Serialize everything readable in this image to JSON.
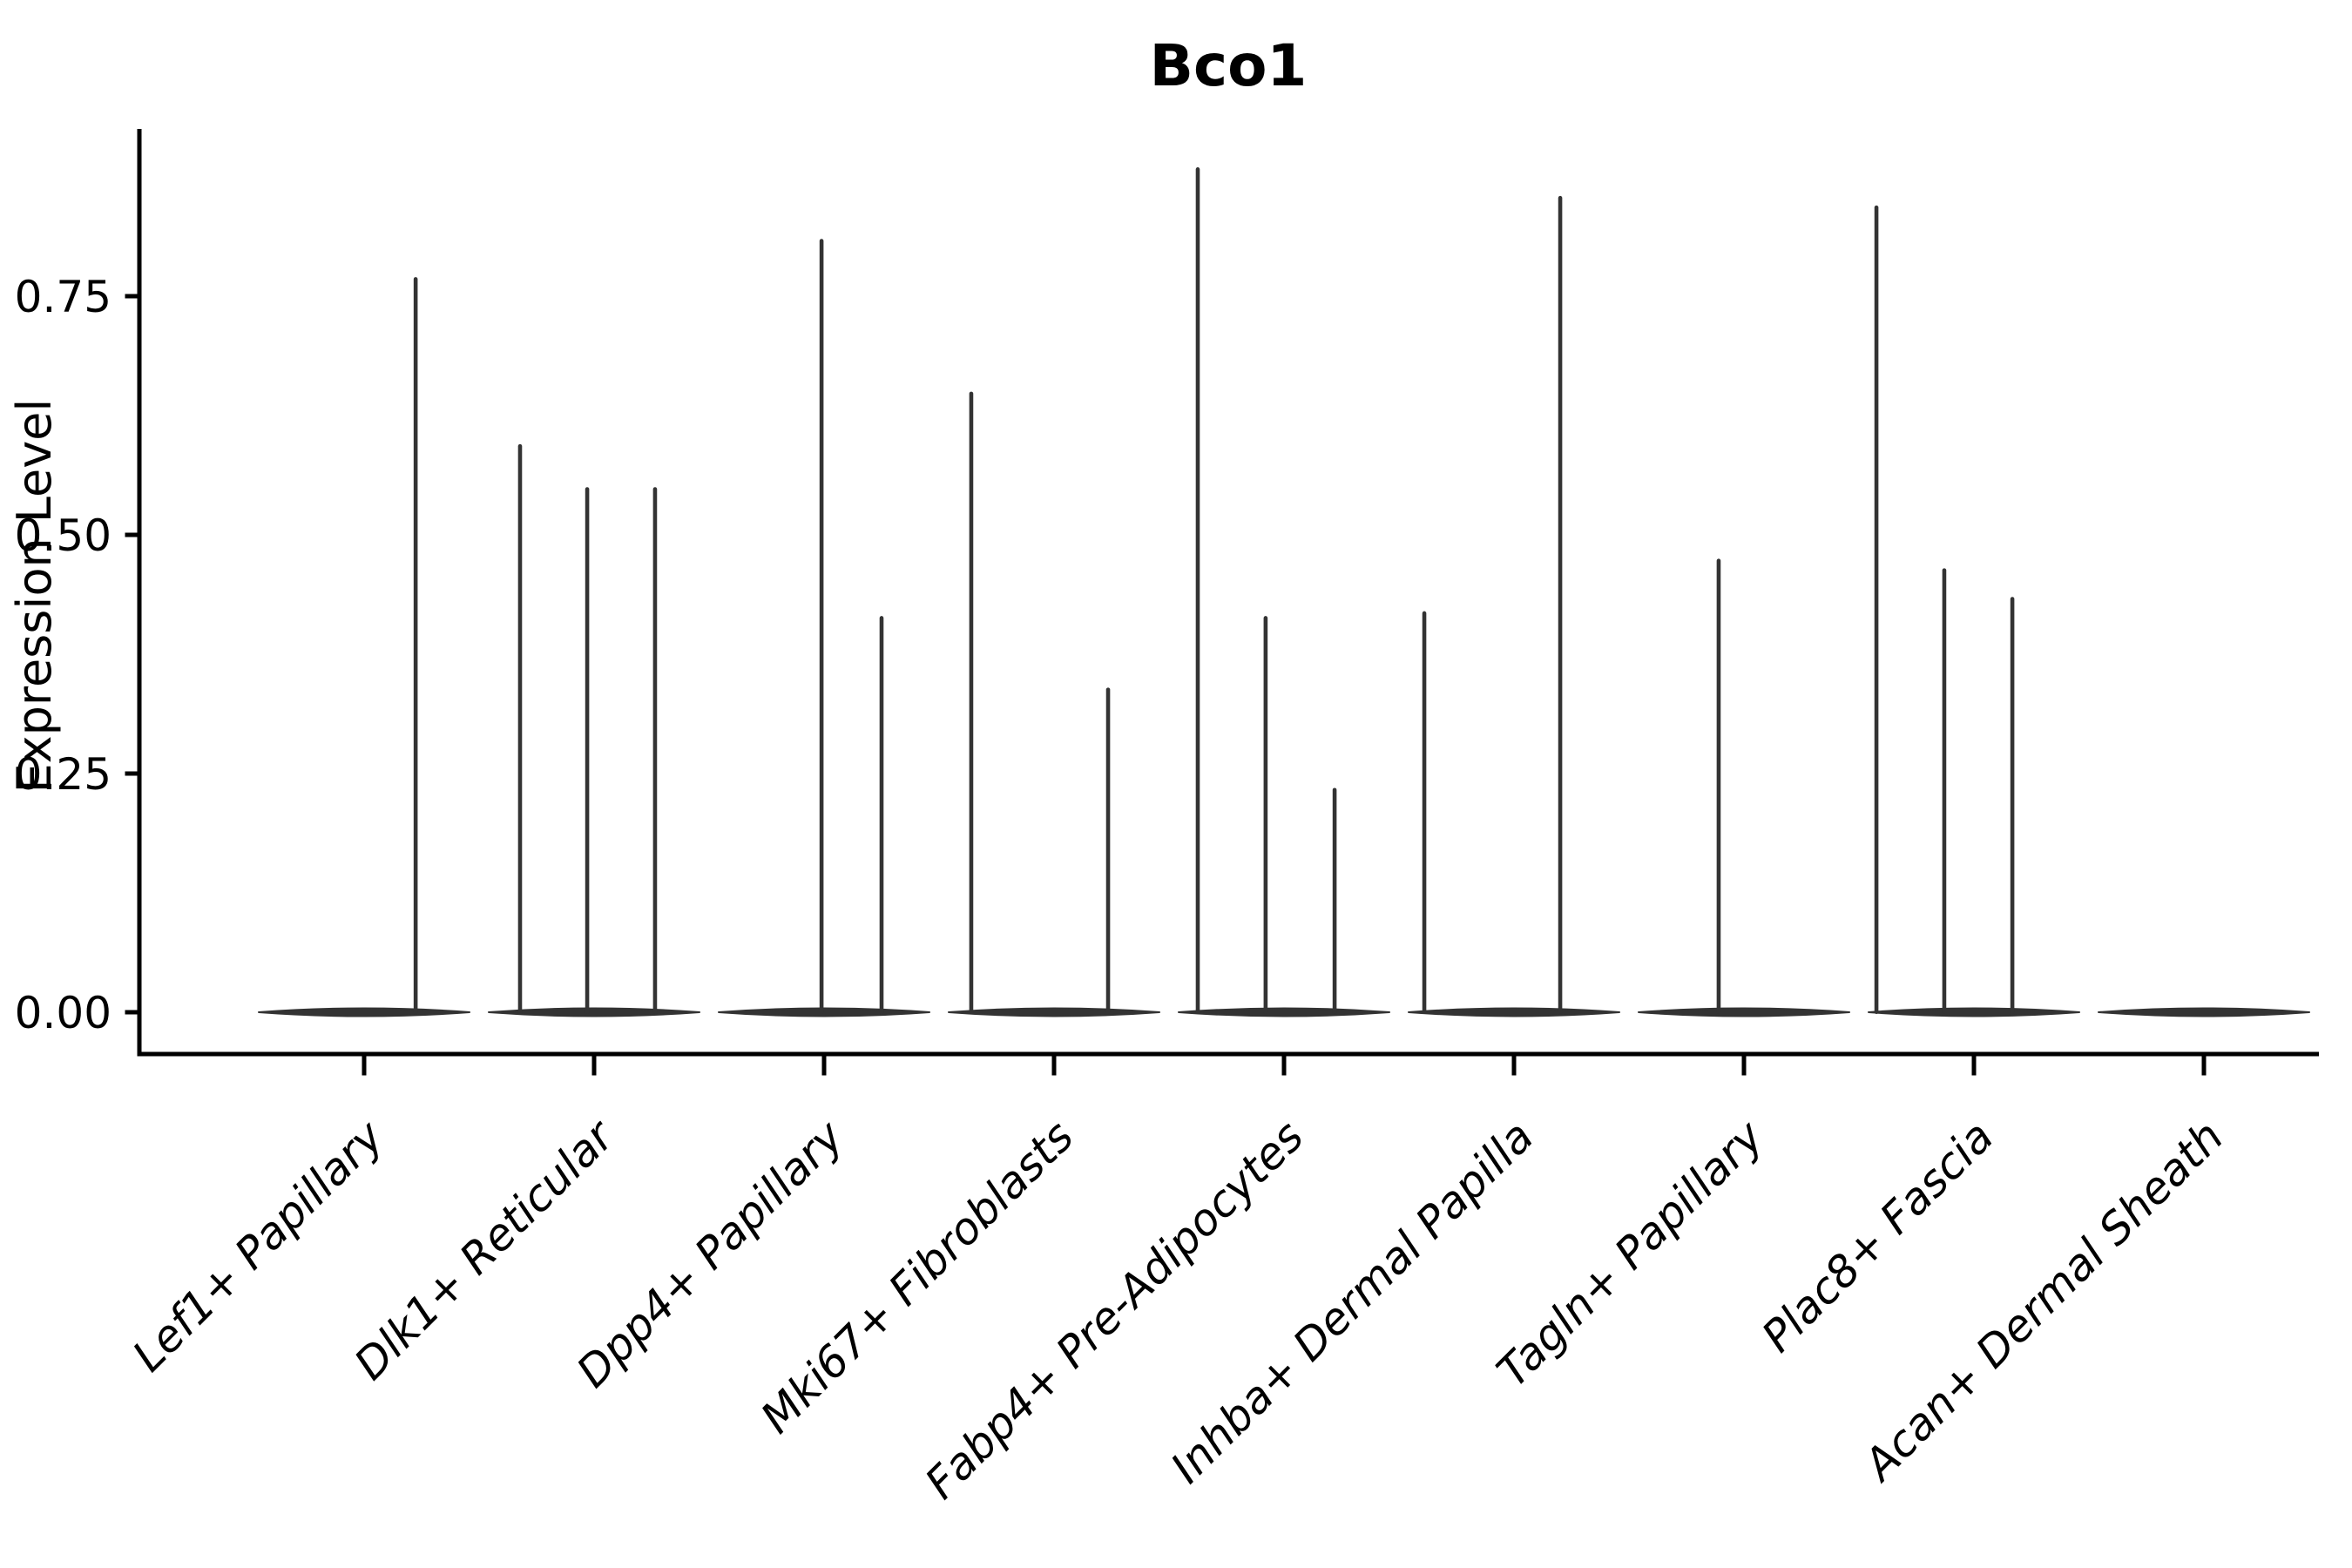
{
  "chart_data": {
    "type": "violin",
    "title": "Bco1",
    "ylabel": "Expression Level",
    "xlabel": "",
    "grid": false,
    "legend": null,
    "ylim": [
      -0.043,
      0.925
    ],
    "yticks": [
      {
        "label": "0.00",
        "value": 0.0
      },
      {
        "label": "0.25",
        "value": 0.25
      },
      {
        "label": "0.50",
        "value": 0.5
      },
      {
        "label": "0.75",
        "value": 0.75
      }
    ],
    "categories": [
      "Lef1+ Papillary",
      "Dlk1+ Reticular",
      "Dpp4+ Papillary",
      "Mki67+ Fibroblasts",
      "Fabp4+ Pre-Adipocytes",
      "Inhba+ Dermal Papilla",
      "Tagln+ Papillary",
      "Plac8+ Fascia",
      "Acan+ Dermal Sheath"
    ],
    "series": [
      {
        "name": "Lef1+ Papillary",
        "baseline_value": 0.0,
        "spikes": [
          {
            "x_jitter": 0.224,
            "value": 0.77
          }
        ]
      },
      {
        "name": "Dlk1+ Reticular",
        "baseline_value": 0.0,
        "spikes": [
          {
            "x_jitter": -0.322,
            "value": 0.595
          },
          {
            "x_jitter": -0.03,
            "value": 0.55
          },
          {
            "x_jitter": 0.265,
            "value": 0.55
          }
        ]
      },
      {
        "name": "Dpp4+ Papillary",
        "baseline_value": 0.0,
        "spikes": [
          {
            "x_jitter": -0.011,
            "value": 0.81
          },
          {
            "x_jitter": 0.25,
            "value": 0.415
          }
        ]
      },
      {
        "name": "Mki67+ Fibroblasts",
        "baseline_value": 0.0,
        "spikes": [
          {
            "x_jitter": -0.36,
            "value": 0.65
          },
          {
            "x_jitter": 0.235,
            "value": 0.34
          }
        ]
      },
      {
        "name": "Fabp4+ Pre-Adipocytes",
        "baseline_value": 0.0,
        "spikes": [
          {
            "x_jitter": -0.375,
            "value": 0.885
          },
          {
            "x_jitter": -0.08,
            "value": 0.415
          },
          {
            "x_jitter": 0.22,
            "value": 0.235
          }
        ]
      },
      {
        "name": "Inhba+ Dermal Papilla",
        "baseline_value": 0.0,
        "spikes": [
          {
            "x_jitter": -0.39,
            "value": 0.42
          },
          {
            "x_jitter": 0.201,
            "value": 0.855
          }
        ]
      },
      {
        "name": "Tagln+ Papillary",
        "baseline_value": 0.0,
        "spikes": [
          {
            "x_jitter": -0.11,
            "value": 0.475
          }
        ]
      },
      {
        "name": "Plac8+ Fascia",
        "baseline_value": 0.0,
        "spikes": [
          {
            "x_jitter": -0.424,
            "value": 0.845
          },
          {
            "x_jitter": -0.129,
            "value": 0.465
          },
          {
            "x_jitter": 0.167,
            "value": 0.435
          }
        ]
      },
      {
        "name": "Acan+ Dermal Sheath",
        "baseline_value": 0.0,
        "spikes": []
      }
    ],
    "colors": {
      "violin": "#333333",
      "spike": "#333333",
      "axis": "#000000",
      "text": "#000000",
      "background": "#ffffff"
    }
  }
}
